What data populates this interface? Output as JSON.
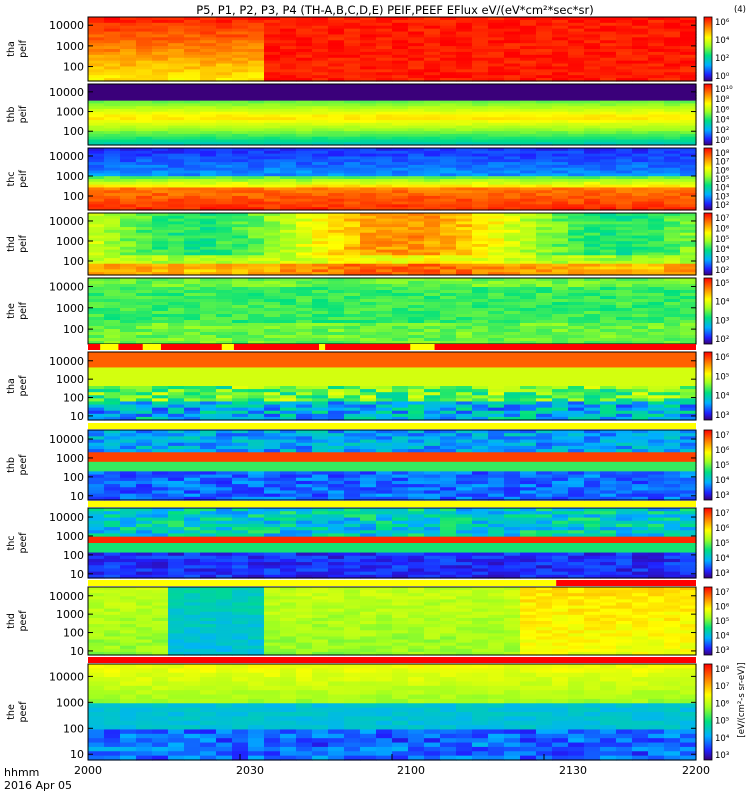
{
  "title": "P5, P1, P2, P3, P4 (TH-A,B,C,D,E) PEIF,PEEF EFlux eV/(eV*cm²*sec*sr)",
  "corner_label": "(4)",
  "time_axis": {
    "ticks": [
      "2000",
      "2030",
      "2100",
      "2130",
      "2200"
    ],
    "caption": "hhmm",
    "date": "2016 Apr 05"
  },
  "colorbar_unit": "[eV/(cm²-s sr-eV)]",
  "chart_data": {
    "type": "heatmap",
    "x_range_minutes": [
      0,
      120
    ],
    "y_scale": "log",
    "panels": [
      {
        "id": "tha-peif",
        "label": [
          "tha",
          "peif"
        ],
        "yticks": [
          "10000",
          "1000",
          "100"
        ],
        "ylim_eV": [
          20,
          25000
        ],
        "cbar_ticks": [
          "10⁶",
          "10⁴",
          "10²",
          "10⁰"
        ],
        "bar_below": null
      },
      {
        "id": "thb-peif",
        "label": [
          "thb",
          "peif"
        ],
        "yticks": [
          "10000",
          "1000",
          "100"
        ],
        "ylim_eV": [
          20,
          25000
        ],
        "cbar_ticks": [
          "10¹⁰",
          "10⁸",
          "10⁶",
          "10⁴",
          "10²",
          "10⁰"
        ],
        "bar_below": null
      },
      {
        "id": "thc-peif",
        "label": [
          "thc",
          "peif"
        ],
        "yticks": [
          "10000",
          "1000",
          "100"
        ],
        "ylim_eV": [
          20,
          25000
        ],
        "cbar_ticks": [
          "10⁸",
          "10⁷",
          "10⁶",
          "10⁵",
          "10⁴",
          "10³",
          "10²"
        ],
        "bar_below": null
      },
      {
        "id": "thd-peif",
        "label": [
          "thd",
          "peif"
        ],
        "yticks": [
          "10000",
          "1000",
          "100"
        ],
        "ylim_eV": [
          20,
          25000
        ],
        "cbar_ticks": [
          "10⁷",
          "10⁶",
          "10⁵",
          "10⁴",
          "10³",
          "10²"
        ],
        "bar_below": null
      },
      {
        "id": "the-peif",
        "label": [
          "the",
          "peif"
        ],
        "yticks": [
          "10000",
          "1000",
          "100"
        ],
        "ylim_eV": [
          20,
          25000
        ],
        "cbar_ticks": [
          "10⁵",
          "10⁴",
          "10³",
          "10²"
        ],
        "bar_below": "mixed"
      },
      {
        "id": "tha-peef",
        "label": [
          "tha",
          "peef"
        ],
        "yticks": [
          "10000",
          "1000",
          "100",
          "10"
        ],
        "ylim_eV": [
          6,
          30000
        ],
        "cbar_ticks": [
          "10⁶",
          "10⁵",
          "10⁴",
          "10³"
        ],
        "bar_below": "yellow"
      },
      {
        "id": "thb-peef",
        "label": [
          "thb",
          "peef"
        ],
        "yticks": [
          "10000",
          "1000",
          "100",
          "10"
        ],
        "ylim_eV": [
          6,
          30000
        ],
        "cbar_ticks": [
          "10⁷",
          "10⁶",
          "10⁵",
          "10⁴",
          "10³"
        ],
        "bar_below": "yellow"
      },
      {
        "id": "thc-peef",
        "label": [
          "thc",
          "peef"
        ],
        "yticks": [
          "10000",
          "1000",
          "100",
          "10"
        ],
        "ylim_eV": [
          6,
          30000
        ],
        "cbar_ticks": [
          "10⁷",
          "10⁶",
          "10⁵",
          "10⁴",
          "10³"
        ],
        "bar_below": "yellow-red"
      },
      {
        "id": "thd-peef",
        "label": [
          "thd",
          "peef"
        ],
        "yticks": [
          "10000",
          "1000",
          "100",
          "10"
        ],
        "ylim_eV": [
          6,
          30000
        ],
        "cbar_ticks": [
          "10⁷",
          "10⁶",
          "10⁵",
          "10⁴",
          "10³"
        ],
        "bar_below": "red"
      },
      {
        "id": "the-peef",
        "label": [
          "the",
          "peef"
        ],
        "yticks": [
          "10000",
          "1000",
          "100",
          "10"
        ],
        "ylim_eV": [
          6,
          30000
        ],
        "cbar_ticks": [
          "10⁸",
          "10⁷",
          "10⁶",
          "10⁵",
          "10⁴",
          "10³"
        ],
        "bar_below": null
      }
    ]
  }
}
